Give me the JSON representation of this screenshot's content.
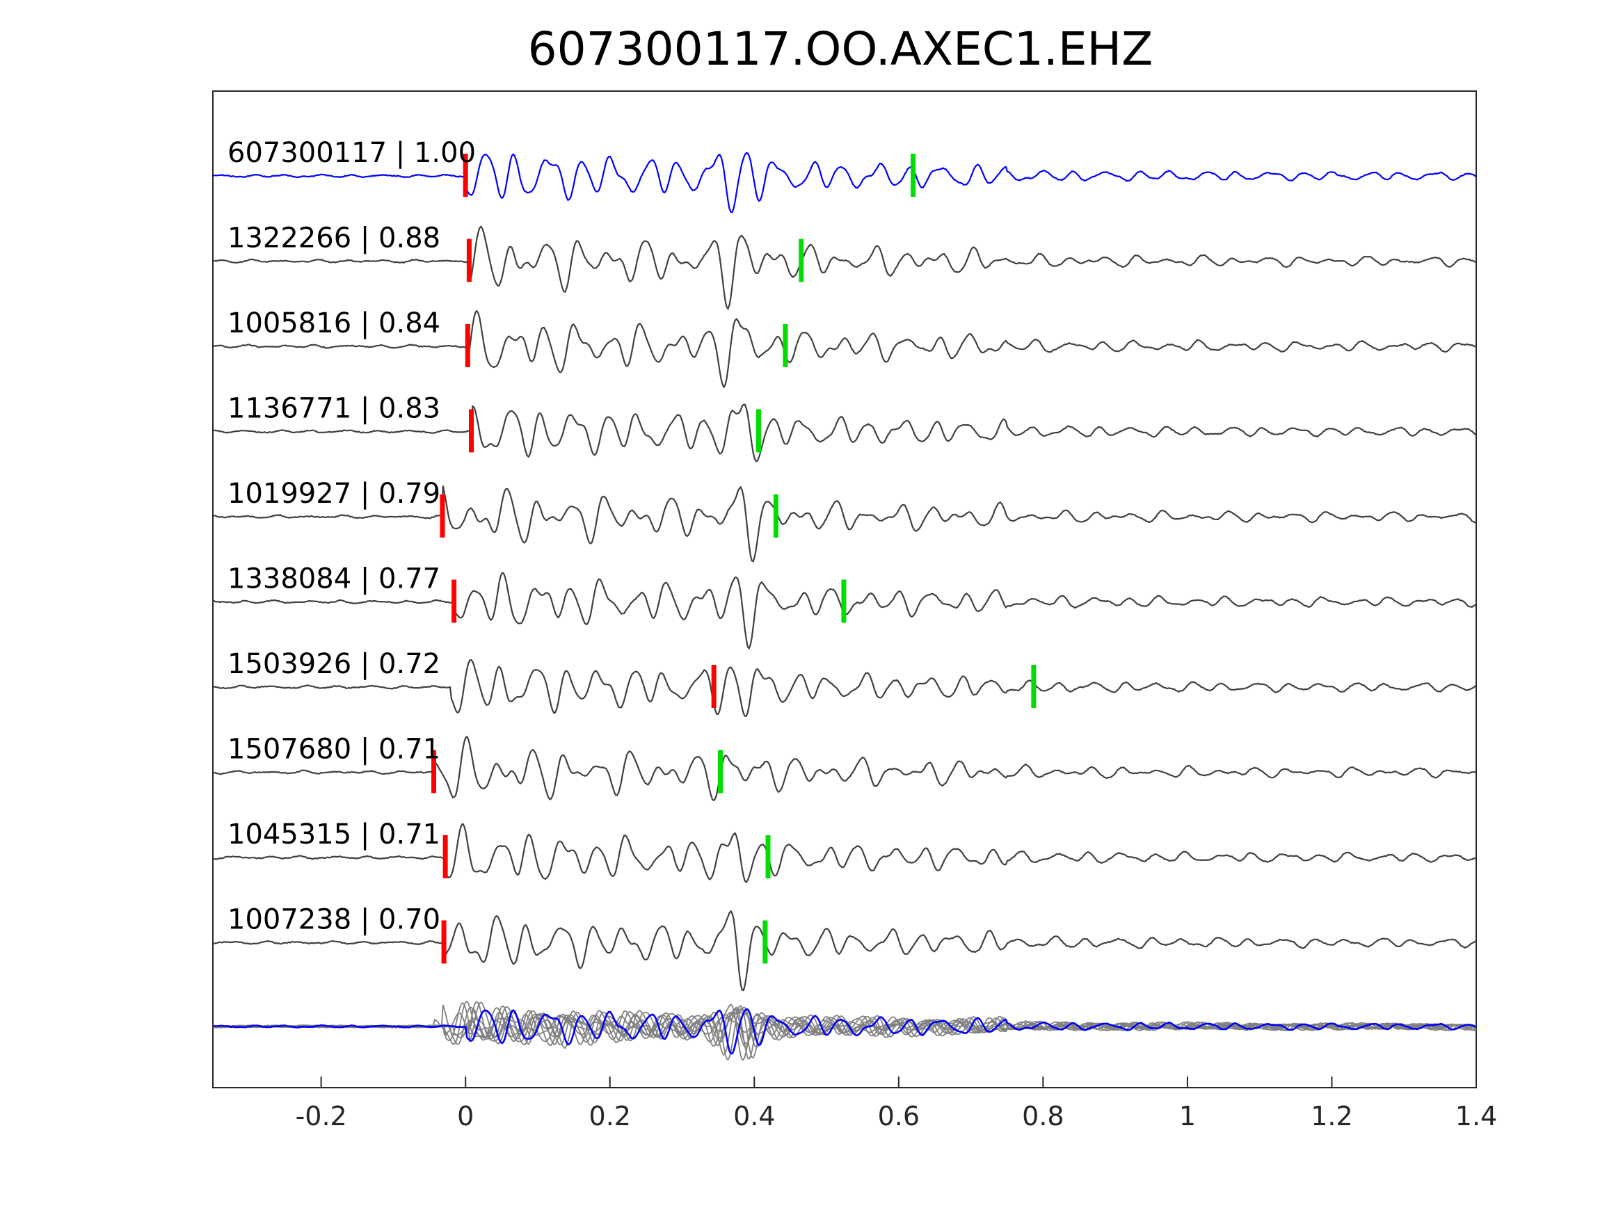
{
  "chart_data": {
    "type": "line",
    "title": "607300117.OO.AXEC1.EHZ",
    "xlabel": "",
    "ylabel": "",
    "xlim": [
      -0.35,
      1.4
    ],
    "grid": false,
    "x_ticks": [
      {
        "value": -0.2,
        "label": "-0.2"
      },
      {
        "value": 0,
        "label": "0"
      },
      {
        "value": 0.2,
        "label": "0.2"
      },
      {
        "value": 0.4,
        "label": "0.4"
      },
      {
        "value": 0.6,
        "label": "0.6"
      },
      {
        "value": 0.8,
        "label": "0.8"
      },
      {
        "value": 1,
        "label": "1"
      },
      {
        "value": 1.2,
        "label": "1.2"
      },
      {
        "value": 1.4,
        "label": "1.4"
      }
    ],
    "colors": {
      "template": "#0000ff",
      "match": "#404040",
      "overlay": "#808080",
      "p_pick": "#ff0000",
      "s_pick": "#00dd00",
      "axes": "#262626"
    },
    "series": [
      {
        "id": "607300117",
        "cc": "1.00",
        "label": "607300117 | 1.00",
        "p_pick": 0.0,
        "s_pick": 0.62,
        "onset": 0.0,
        "color": "template"
      },
      {
        "id": "1322266",
        "cc": "0.88",
        "label": "1322266 | 0.88",
        "p_pick": 0.005,
        "s_pick": 0.465,
        "onset": 0.005,
        "color": "match"
      },
      {
        "id": "1005816",
        "cc": "0.84",
        "label": "1005816 | 0.84",
        "p_pick": 0.003,
        "s_pick": 0.443,
        "onset": 0.003,
        "color": "match"
      },
      {
        "id": "1136771",
        "cc": "0.83",
        "label": "1136771 | 0.83",
        "p_pick": 0.008,
        "s_pick": 0.406,
        "onset": 0.008,
        "color": "match"
      },
      {
        "id": "1019927",
        "cc": "0.79",
        "label": "1019927 | 0.79",
        "p_pick": -0.032,
        "s_pick": 0.43,
        "onset": -0.032,
        "color": "match"
      },
      {
        "id": "1338084",
        "cc": "0.77",
        "label": "1338084 | 0.77",
        "p_pick": -0.016,
        "s_pick": 0.524,
        "onset": -0.016,
        "color": "match"
      },
      {
        "id": "1503926",
        "cc": "0.72",
        "label": "1503926 | 0.72",
        "p_pick": 0.344,
        "s_pick": 0.787,
        "onset": -0.02,
        "color": "match"
      },
      {
        "id": "1507680",
        "cc": "0.71",
        "label": "1507680 | 0.71",
        "p_pick": -0.044,
        "s_pick": 0.353,
        "onset": -0.044,
        "color": "match"
      },
      {
        "id": "1045315",
        "cc": "0.71",
        "label": "1045315 | 0.71",
        "p_pick": -0.028,
        "s_pick": 0.419,
        "onset": -0.028,
        "color": "match"
      },
      {
        "id": "1007238",
        "cc": "0.70",
        "label": "1007238 | 0.70",
        "p_pick": -0.03,
        "s_pick": 0.415,
        "onset": -0.03,
        "color": "match"
      }
    ]
  }
}
